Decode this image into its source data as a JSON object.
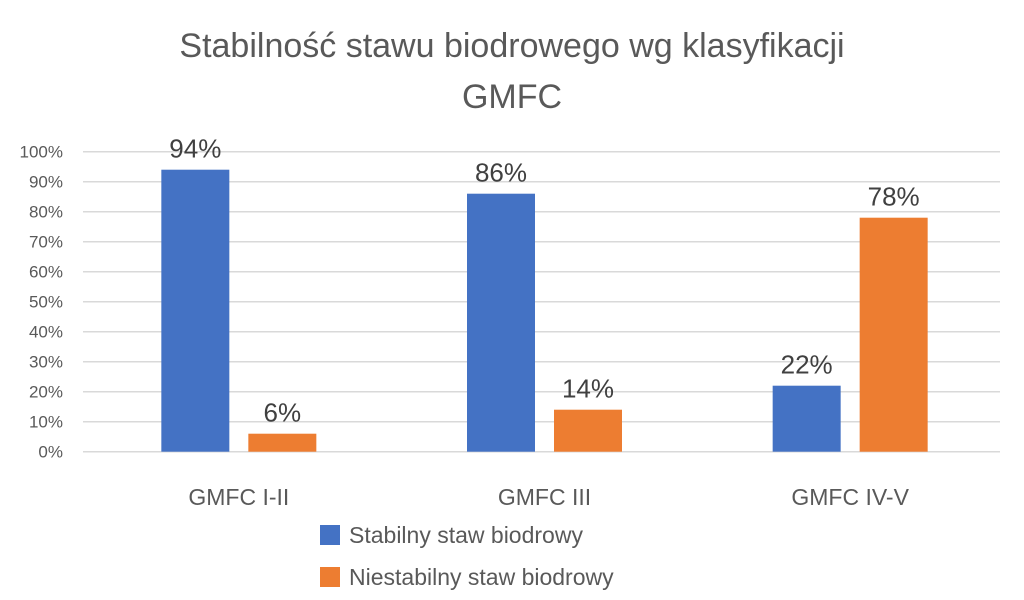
{
  "chart_data": {
    "type": "bar",
    "title_lines": [
      "Stabilność stawu biodrowego wg klasyfikacji",
      "GMFC"
    ],
    "categories": [
      "GMFC I-II",
      "GMFC III",
      "GMFC IV-V"
    ],
    "series": [
      {
        "name": "Stabilny staw biodrowy",
        "values": [
          94,
          86,
          22
        ],
        "labels": [
          "94%",
          "86%",
          "22%"
        ],
        "color": "#4472C4"
      },
      {
        "name": "Niestabilny staw biodrowy",
        "values": [
          6,
          14,
          78
        ],
        "labels": [
          "6%",
          "14%",
          "78%"
        ],
        "color": "#ED7D31"
      }
    ],
    "yticks": [
      "0%",
      "10%",
      "20%",
      "30%",
      "40%",
      "50%",
      "60%",
      "70%",
      "80%",
      "90%",
      "100%"
    ],
    "ylim": [
      0,
      100
    ],
    "xlabel": "",
    "ylabel": "",
    "grid": true,
    "legend_position": "bottom"
  }
}
